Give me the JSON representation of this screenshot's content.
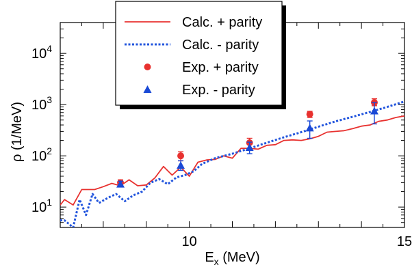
{
  "chart_data": {
    "type": "line",
    "xlabel_base": "E",
    "xlabel_sub": "x",
    "xlabel_unit": " (MeV)",
    "ylabel": "ρ (1/MeV)",
    "xlim": [
      7.0,
      15.0
    ],
    "ylim": [
      4,
      40000
    ],
    "yscale": "log",
    "xticks": [
      10,
      15
    ],
    "yticks": [
      {
        "value": 10,
        "base": "10",
        "exp": "1"
      },
      {
        "value": 100,
        "base": "10",
        "exp": "2"
      },
      {
        "value": 1000,
        "base": "10",
        "exp": "3"
      },
      {
        "value": 10000,
        "base": "10",
        "exp": "4"
      }
    ],
    "legend_position": "top-center",
    "series": [
      {
        "name": "Calc. + parity",
        "kind": "line",
        "style": "solid",
        "color": "#e8312f",
        "x": [
          7.0,
          7.1,
          7.3,
          7.5,
          7.8,
          8.0,
          8.2,
          8.4,
          8.6,
          8.8,
          9.0,
          9.2,
          9.4,
          9.6,
          9.8,
          10.0,
          10.2,
          10.4,
          10.6,
          10.8,
          11.0,
          11.2,
          11.4,
          11.6,
          11.8,
          12.0,
          12.2,
          12.4,
          12.6,
          12.8,
          13.0,
          13.2,
          13.4,
          13.6,
          13.8,
          14.0,
          14.2,
          14.4,
          14.6,
          14.8,
          15.0
        ],
        "y": [
          11,
          14,
          11,
          22,
          22,
          25,
          29,
          26,
          34,
          26,
          27,
          37,
          62,
          42,
          60,
          40,
          75,
          83,
          85,
          100,
          90,
          140,
          140,
          135,
          160,
          165,
          200,
          205,
          200,
          215,
          240,
          290,
          300,
          310,
          340,
          380,
          400,
          470,
          500,
          560,
          600
        ]
      },
      {
        "name": "Calc. - parity",
        "kind": "line",
        "style": "dotted",
        "color": "#2255dd",
        "x": [
          7.0,
          7.1,
          7.3,
          7.45,
          7.6,
          7.75,
          7.9,
          8.1,
          8.3,
          8.5,
          8.7,
          8.9,
          9.1,
          9.3,
          9.5,
          9.7,
          9.9,
          10.1,
          10.3,
          10.6,
          11.0,
          11.4,
          11.8,
          12.2,
          12.6,
          13.0,
          13.4,
          13.8,
          14.2,
          14.6,
          15.0
        ],
        "y": [
          5.5,
          5.5,
          4,
          14,
          7,
          18,
          12,
          15,
          18,
          13,
          17,
          20,
          30,
          35,
          28,
          38,
          42,
          50,
          70,
          90,
          110,
          140,
          180,
          230,
          290,
          370,
          470,
          580,
          720,
          900,
          1150
        ]
      },
      {
        "name": "Exp. + parity",
        "kind": "scatter",
        "marker": "circle",
        "color": "#e8312f",
        "x": [
          8.4,
          9.8,
          11.4,
          12.8,
          14.3
        ],
        "y": [
          30,
          100,
          180,
          650,
          1100
        ],
        "yerr_low": [
          26,
          80,
          140,
          560,
          950
        ],
        "yerr_high": [
          34,
          120,
          220,
          740,
          1300
        ]
      },
      {
        "name": "Exp.  - parity",
        "kind": "scatter",
        "marker": "triangle",
        "color": "#1a49d6",
        "x": [
          8.4,
          9.8,
          11.4,
          12.8,
          14.3
        ],
        "y": [
          28,
          65,
          145,
          350,
          750
        ],
        "yerr_low": [
          25,
          52,
          110,
          220,
          420
        ],
        "yerr_high": [
          32,
          80,
          185,
          480,
          1100
        ]
      }
    ]
  }
}
